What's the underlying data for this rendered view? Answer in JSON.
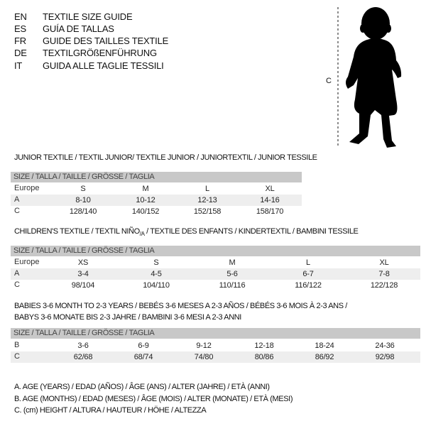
{
  "title_lines": [
    {
      "code": "EN",
      "text": "TEXTILE SIZE GUIDE"
    },
    {
      "code": "ES",
      "text": "GUÍA DE TALLAS"
    },
    {
      "code": "FR",
      "text": "GUIDE DES TAILLES TEXTILE"
    },
    {
      "code": "DE",
      "text": "TEXTILGRÖßENFÜHRUNG"
    },
    {
      "code": "IT",
      "text": "GUIDA ALLE TAGLIE TESSILI"
    }
  ],
  "figure": {
    "label": "C",
    "icon": "baby-silhouette"
  },
  "junior": {
    "heading": "JUNIOR TEXTILE / TEXTIL JUNIOR/ TEXTILE JUNIOR / JUNIORTEXTIL / JUNIOR TESSILE",
    "size_header": "SIZE / TALLA / TAILLE / GRÖSSE / TAGLIA",
    "rows": [
      {
        "label": "Europe",
        "values": [
          "S",
          "M",
          "L",
          "XL"
        ]
      },
      {
        "label": "A",
        "values": [
          "8-10",
          "10-12",
          "12-13",
          "14-16"
        ]
      },
      {
        "label": "C",
        "values": [
          "128/140",
          "140/152",
          "152/158",
          "158/170"
        ]
      }
    ]
  },
  "children": {
    "heading_pre": "CHILDREN'S TEXTILE / TEXTIL NIÑO",
    "heading_sub": "/A",
    "heading_post": " / TEXTILE DES ENFANTS / KINDERTEXTIL / BAMBINI TESSILE",
    "size_header": "SIZE / TALLA / TAILLE / GRÖSSE / TAGLIA",
    "rows": [
      {
        "label": "Europe",
        "values": [
          "XS",
          "S",
          "M",
          "L",
          "XL"
        ]
      },
      {
        "label": "A",
        "values": [
          "3-4",
          "4-5",
          "5-6",
          "6-7",
          "7-8"
        ]
      },
      {
        "label": "C",
        "values": [
          "98/104",
          "104/110",
          "110/116",
          "116/122",
          "122/128"
        ]
      }
    ]
  },
  "babies": {
    "heading_line1": "BABIES 3-6 MONTH TO 2-3 YEARS / BEBÉS 3-6 MESES A 2-3 AÑOS / BÉBÉS 3-6 MOIS À 2-3 ANS /",
    "heading_line2": "BABYS 3-6 MONATE BIS 2-3 JAHRE / BAMBINI 3-6 MESI A 2-3 ANNI",
    "size_header": "SIZE / TALLA / TAILLE / GRÖSSE / TAGLIA",
    "rows": [
      {
        "label": "B",
        "values": [
          "3-6",
          "6-9",
          "9-12",
          "12-18",
          "18-24",
          "24-36"
        ]
      },
      {
        "label": "C",
        "values": [
          "62/68",
          "68/74",
          "74/80",
          "80/86",
          "86/92",
          "92/98"
        ]
      }
    ]
  },
  "notes": [
    "A. AGE (YEARS) / EDAD (AÑOS) / ÂGE (ANS) / ALTER (JAHRE) / ETÀ (ANNI)",
    "B. AGE (MONTHS) / EDAD (MESES) / ÂGE (MOIS) / ALTER (MONATE) / ETÀ (MESI)",
    "C. (cm) HEIGHT / ALTURA / HAUTEUR / HÖHE / ALTEZZA"
  ]
}
